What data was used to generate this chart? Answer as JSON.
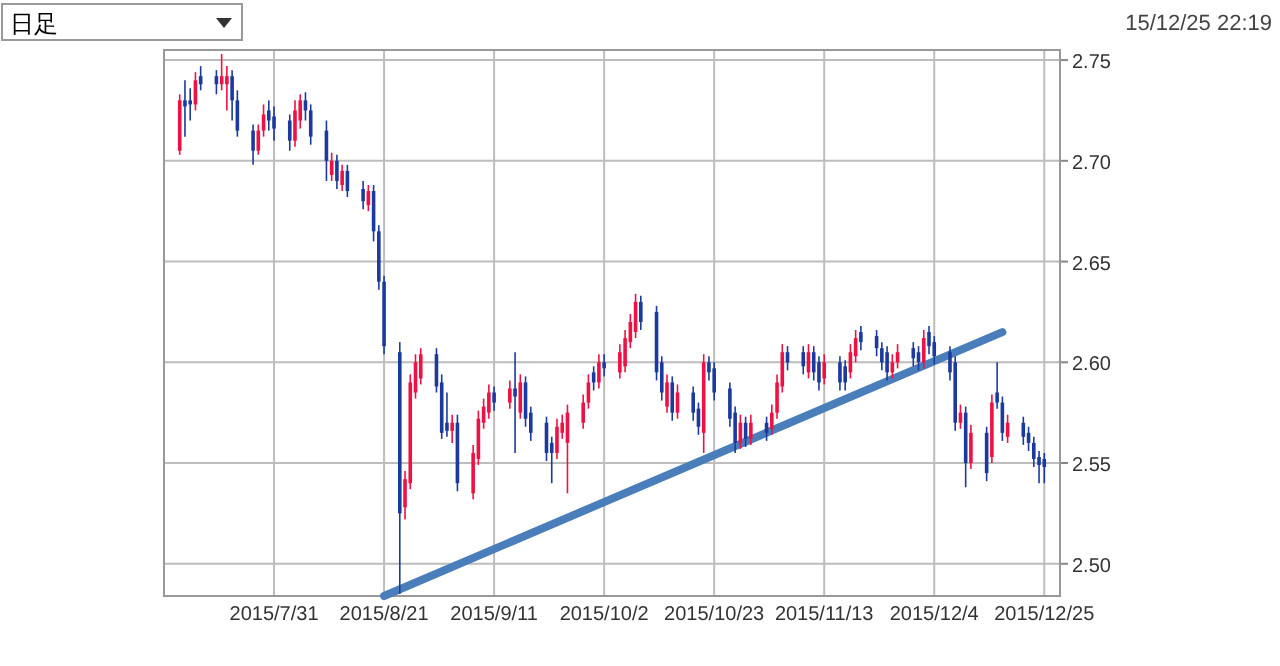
{
  "chart_data": {
    "type": "candlestick",
    "annotations": [
      "日足",
      "15/12/25 22:19"
    ],
    "x": [
      "2015-07-13",
      "2015-07-14",
      "2015-07-15",
      "2015-07-16",
      "2015-07-17",
      "2015-07-20",
      "2015-07-21",
      "2015-07-22",
      "2015-07-23",
      "2015-07-24",
      "2015-07-27",
      "2015-07-28",
      "2015-07-29",
      "2015-07-30",
      "2015-07-31",
      "2015-08-03",
      "2015-08-04",
      "2015-08-05",
      "2015-08-06",
      "2015-08-07",
      "2015-08-10",
      "2015-08-11",
      "2015-08-12",
      "2015-08-13",
      "2015-08-14",
      "2015-08-17",
      "2015-08-18",
      "2015-08-19",
      "2015-08-20",
      "2015-08-21",
      "2015-08-24",
      "2015-08-25",
      "2015-08-26",
      "2015-08-27",
      "2015-08-28",
      "2015-08-31",
      "2015-09-01",
      "2015-09-02",
      "2015-09-03",
      "2015-09-04",
      "2015-09-07",
      "2015-09-08",
      "2015-09-09",
      "2015-09-10",
      "2015-09-11",
      "2015-09-14",
      "2015-09-15",
      "2015-09-16",
      "2015-09-17",
      "2015-09-18",
      "2015-09-21",
      "2015-09-22",
      "2015-09-23",
      "2015-09-24",
      "2015-09-25",
      "2015-09-28",
      "2015-09-29",
      "2015-09-30",
      "2015-10-01",
      "2015-10-02",
      "2015-10-05",
      "2015-10-06",
      "2015-10-07",
      "2015-10-08",
      "2015-10-09",
      "2015-10-12",
      "2015-10-13",
      "2015-10-14",
      "2015-10-15",
      "2015-10-16",
      "2015-10-19",
      "2015-10-20",
      "2015-10-21",
      "2015-10-22",
      "2015-10-23",
      "2015-10-26",
      "2015-10-27",
      "2015-10-28",
      "2015-10-29",
      "2015-10-30",
      "2015-11-02",
      "2015-11-03",
      "2015-11-04",
      "2015-11-05",
      "2015-11-06",
      "2015-11-09",
      "2015-11-10",
      "2015-11-11",
      "2015-11-12",
      "2015-11-13",
      "2015-11-16",
      "2015-11-17",
      "2015-11-18",
      "2015-11-19",
      "2015-11-20",
      "2015-11-23",
      "2015-11-24",
      "2015-11-25",
      "2015-11-26",
      "2015-11-27",
      "2015-11-30",
      "2015-12-01",
      "2015-12-02",
      "2015-12-03",
      "2015-12-04",
      "2015-12-07",
      "2015-12-08",
      "2015-12-09",
      "2015-12-10",
      "2015-12-11",
      "2015-12-14",
      "2015-12-15",
      "2015-12-16",
      "2015-12-17",
      "2015-12-18",
      "2015-12-21",
      "2015-12-22",
      "2015-12-23",
      "2015-12-24",
      "2015-12-25"
    ],
    "ohlc": [
      [
        2.705,
        2.733,
        2.703,
        2.73
      ],
      [
        2.73,
        2.74,
        2.712,
        2.727
      ],
      [
        2.73,
        2.736,
        2.72,
        2.728
      ],
      [
        2.728,
        2.744,
        2.725,
        2.74
      ],
      [
        2.742,
        2.747,
        2.735,
        2.738
      ],
      [
        2.742,
        2.745,
        2.733,
        2.738
      ],
      [
        2.738,
        2.753,
        2.735,
        2.742
      ],
      [
        2.738,
        2.747,
        2.725,
        2.742
      ],
      [
        2.742,
        2.745,
        2.72,
        2.73
      ],
      [
        2.73,
        2.735,
        2.712,
        2.715
      ],
      [
        2.715,
        2.718,
        2.698,
        2.705
      ],
      [
        2.705,
        2.718,
        2.703,
        2.715
      ],
      [
        2.715,
        2.728,
        2.712,
        2.723
      ],
      [
        2.725,
        2.73,
        2.715,
        2.72
      ],
      [
        2.722,
        2.727,
        2.71,
        2.716
      ],
      [
        2.72,
        2.723,
        2.705,
        2.71
      ],
      [
        2.71,
        2.73,
        2.707,
        2.725
      ],
      [
        2.72,
        2.733,
        2.716,
        2.73
      ],
      [
        2.73,
        2.734,
        2.72,
        2.725
      ],
      [
        2.725,
        2.728,
        2.708,
        2.712
      ],
      [
        2.715,
        2.72,
        2.69,
        2.7
      ],
      [
        2.693,
        2.704,
        2.69,
        2.7
      ],
      [
        2.7,
        2.703,
        2.686,
        2.69
      ],
      [
        2.688,
        2.698,
        2.685,
        2.695
      ],
      [
        2.695,
        2.698,
        2.682,
        2.685
      ],
      [
        2.686,
        2.69,
        2.676,
        2.68
      ],
      [
        2.678,
        2.688,
        2.675,
        2.685
      ],
      [
        2.685,
        2.688,
        2.66,
        2.665
      ],
      [
        2.665,
        2.668,
        2.636,
        2.64
      ],
      [
        2.64,
        2.643,
        2.604,
        2.608
      ],
      [
        2.605,
        2.61,
        2.485,
        2.525
      ],
      [
        2.528,
        2.546,
        2.522,
        2.542
      ],
      [
        2.54,
        2.594,
        2.537,
        2.59
      ],
      [
        2.585,
        2.604,
        2.582,
        2.6
      ],
      [
        2.592,
        2.607,
        2.589,
        2.604
      ],
      [
        2.604,
        2.607,
        2.585,
        2.588
      ],
      [
        2.59,
        2.594,
        2.562,
        2.565
      ],
      [
        2.57,
        2.585,
        2.563,
        2.566
      ],
      [
        2.566,
        2.574,
        2.56,
        2.57
      ],
      [
        2.57,
        2.574,
        2.536,
        2.54
      ],
      [
        2.535,
        2.559,
        2.532,
        2.555
      ],
      [
        2.552,
        2.576,
        2.549,
        2.572
      ],
      [
        2.57,
        2.582,
        2.567,
        2.578
      ],
      [
        2.575,
        2.589,
        2.572,
        2.585
      ],
      [
        2.585,
        2.588,
        2.576,
        2.58
      ],
      [
        2.58,
        2.591,
        2.577,
        2.587
      ],
      [
        2.587,
        2.605,
        2.555,
        2.583
      ],
      [
        2.575,
        2.594,
        2.572,
        2.59
      ],
      [
        2.59,
        2.593,
        2.568,
        2.572
      ],
      [
        2.575,
        2.578,
        2.561,
        2.565
      ],
      [
        2.57,
        2.573,
        2.551,
        2.555
      ],
      [
        2.56,
        2.563,
        2.54,
        2.555
      ],
      [
        2.555,
        2.572,
        2.552,
        2.568
      ],
      [
        2.565,
        2.574,
        2.562,
        2.57
      ],
      [
        2.56,
        2.579,
        2.535,
        2.575
      ],
      [
        2.57,
        2.584,
        2.567,
        2.58
      ],
      [
        2.58,
        2.594,
        2.577,
        2.59
      ],
      [
        2.595,
        2.598,
        2.586,
        2.59
      ],
      [
        2.59,
        2.604,
        2.587,
        2.6
      ],
      [
        2.6,
        2.604,
        2.593,
        2.597
      ],
      [
        2.595,
        2.609,
        2.592,
        2.605
      ],
      [
        2.598,
        2.616,
        2.595,
        2.612
      ],
      [
        2.61,
        2.624,
        2.607,
        2.62
      ],
      [
        2.615,
        2.634,
        2.612,
        2.63
      ],
      [
        2.63,
        2.633,
        2.616,
        2.62
      ],
      [
        2.625,
        2.628,
        2.591,
        2.595
      ],
      [
        2.6,
        2.603,
        2.581,
        2.585
      ],
      [
        2.578,
        2.594,
        2.575,
        2.59
      ],
      [
        2.59,
        2.593,
        2.571,
        2.575
      ],
      [
        2.575,
        2.589,
        2.572,
        2.585
      ],
      [
        2.585,
        2.588,
        2.571,
        2.575
      ],
      [
        2.577,
        2.58,
        2.564,
        2.568
      ],
      [
        2.565,
        2.604,
        2.555,
        2.6
      ],
      [
        2.6,
        2.603,
        2.591,
        2.595
      ],
      [
        2.597,
        2.6,
        2.581,
        2.585
      ],
      [
        2.587,
        2.59,
        2.568,
        2.572
      ],
      [
        2.575,
        2.578,
        2.555,
        2.56
      ],
      [
        2.56,
        2.574,
        2.557,
        2.57
      ],
      [
        2.57,
        2.573,
        2.558,
        2.562
      ],
      [
        2.562,
        2.574,
        2.559,
        2.57
      ],
      [
        2.57,
        2.573,
        2.561,
        2.565
      ],
      [
        2.567,
        2.579,
        2.564,
        2.575
      ],
      [
        2.575,
        2.594,
        2.572,
        2.59
      ],
      [
        2.588,
        2.609,
        2.585,
        2.605
      ],
      [
        2.605,
        2.608,
        2.596,
        2.6
      ],
      [
        2.605,
        2.608,
        2.594,
        2.598
      ],
      [
        2.595,
        2.609,
        2.592,
        2.605
      ],
      [
        2.605,
        2.608,
        2.591,
        2.595
      ],
      [
        2.6,
        2.603,
        2.586,
        2.59
      ],
      [
        2.592,
        2.604,
        2.589,
        2.6
      ],
      [
        2.6,
        2.603,
        2.586,
        2.59
      ],
      [
        2.598,
        2.601,
        2.586,
        2.59
      ],
      [
        2.595,
        2.609,
        2.592,
        2.605
      ],
      [
        2.603,
        2.616,
        2.6,
        2.612
      ],
      [
        2.615,
        2.618,
        2.606,
        2.61
      ],
      [
        2.613,
        2.616,
        2.603,
        2.607
      ],
      [
        2.607,
        2.61,
        2.596,
        2.6
      ],
      [
        2.605,
        2.608,
        2.591,
        2.595
      ],
      [
        2.595,
        2.604,
        2.592,
        2.6
      ],
      [
        2.6,
        2.609,
        2.597,
        2.605
      ],
      [
        2.607,
        2.61,
        2.598,
        2.602
      ],
      [
        2.605,
        2.608,
        2.596,
        2.6
      ],
      [
        2.6,
        2.616,
        2.597,
        2.612
      ],
      [
        2.615,
        2.618,
        2.604,
        2.608
      ],
      [
        2.61,
        2.613,
        2.599,
        2.603
      ],
      [
        2.605,
        2.608,
        2.591,
        2.595
      ],
      [
        2.6,
        2.603,
        2.566,
        2.57
      ],
      [
        2.57,
        2.579,
        2.567,
        2.575
      ],
      [
        2.575,
        2.578,
        2.538,
        2.55
      ],
      [
        2.55,
        2.569,
        2.547,
        2.565
      ],
      [
        2.565,
        2.568,
        2.541,
        2.545
      ],
      [
        2.553,
        2.584,
        2.55,
        2.58
      ],
      [
        2.585,
        2.6,
        2.577,
        2.58
      ],
      [
        2.58,
        2.583,
        2.561,
        2.565
      ],
      [
        2.563,
        2.574,
        2.56,
        2.57
      ],
      [
        2.57,
        2.573,
        2.559,
        2.563
      ],
      [
        2.565,
        2.568,
        2.556,
        2.56
      ],
      [
        2.56,
        2.563,
        2.548,
        2.552
      ],
      [
        2.553,
        2.556,
        2.54,
        2.549
      ],
      [
        2.552,
        2.555,
        2.54,
        2.548
      ]
    ],
    "colors": [
      "#ee1144",
      "#1c3a9e",
      "#1c3a9e",
      "#ee1144",
      "#1c3a9e",
      "#1c3a9e",
      "#ee1144",
      "#ee1144",
      "#1c3a9e",
      "#1c3a9e",
      "#1c3a9e",
      "#ee1144",
      "#ee1144",
      "#1c3a9e",
      "#1c3a9e",
      "#1c3a9e",
      "#ee1144",
      "#ee1144",
      "#1c3a9e",
      "#1c3a9e",
      "#1c3a9e",
      "#ee1144",
      "#1c3a9e",
      "#ee1144",
      "#1c3a9e",
      "#1c3a9e",
      "#ee1144",
      "#1c3a9e",
      "#1c3a9e",
      "#1c3a9e",
      "#1c3a9e",
      "#ee1144",
      "#ee1144",
      "#ee1144",
      "#ee1144",
      "#1c3a9e",
      "#1c3a9e",
      "#1c3a9e",
      "#ee1144",
      "#1c3a9e",
      "#ee1144",
      "#ee1144",
      "#ee1144",
      "#ee1144",
      "#1c3a9e",
      "#ee1144",
      "#1c3a9e",
      "#ee1144",
      "#1c3a9e",
      "#1c3a9e",
      "#1c3a9e",
      "#1c3a9e",
      "#ee1144",
      "#ee1144",
      "#ee1144",
      "#ee1144",
      "#ee1144",
      "#1c3a9e",
      "#ee1144",
      "#1c3a9e",
      "#ee1144",
      "#ee1144",
      "#ee1144",
      "#ee1144",
      "#1c3a9e",
      "#1c3a9e",
      "#1c3a9e",
      "#ee1144",
      "#1c3a9e",
      "#ee1144",
      "#1c3a9e",
      "#1c3a9e",
      "#ee1144",
      "#1c3a9e",
      "#1c3a9e",
      "#1c3a9e",
      "#1c3a9e",
      "#ee1144",
      "#1c3a9e",
      "#ee1144",
      "#1c3a9e",
      "#ee1144",
      "#ee1144",
      "#ee1144",
      "#1c3a9e",
      "#1c3a9e",
      "#ee1144",
      "#1c3a9e",
      "#1c3a9e",
      "#ee1144",
      "#1c3a9e",
      "#1c3a9e",
      "#ee1144",
      "#ee1144",
      "#1c3a9e",
      "#1c3a9e",
      "#1c3a9e",
      "#1c3a9e",
      "#ee1144",
      "#ee1144",
      "#1c3a9e",
      "#1c3a9e",
      "#ee1144",
      "#1c3a9e",
      "#1c3a9e",
      "#1c3a9e",
      "#1c3a9e",
      "#ee1144",
      "#1c3a9e",
      "#ee1144",
      "#1c3a9e",
      "#ee1144",
      "#1c3a9e",
      "#1c3a9e",
      "#ee1144",
      "#1c3a9e",
      "#1c3a9e",
      "#1c3a9e",
      "#1c3a9e",
      "#1c3a9e"
    ],
    "series": [
      {
        "type": "line",
        "x": [
          "2015-08-21",
          "2015-12-17"
        ],
        "values": [
          2.484,
          2.615
        ],
        "color": "#4a7ebb"
      }
    ],
    "xlim": [
      "2015-07-10",
      "2015-12-28"
    ],
    "xticks": [
      {
        "value": "2015-07-31",
        "label": "2015/7/31"
      },
      {
        "value": "2015-08-21",
        "label": "2015/8/21"
      },
      {
        "value": "2015-09-11",
        "label": "2015/9/11"
      },
      {
        "value": "2015-10-02",
        "label": "2015/10/2"
      },
      {
        "value": "2015-10-23",
        "label": "2015/10/23"
      },
      {
        "value": "2015-11-13",
        "label": "2015/11/13"
      },
      {
        "value": "2015-12-04",
        "label": "2015/12/4"
      },
      {
        "value": "2015-12-25",
        "label": "2015/12/25"
      }
    ],
    "ylim": [
      2.484,
      2.755
    ],
    "yticks": [
      {
        "value": 2.5,
        "label": "2.50"
      },
      {
        "value": 2.55,
        "label": "2.55"
      },
      {
        "value": 2.6,
        "label": "2.60"
      },
      {
        "value": 2.65,
        "label": "2.65"
      },
      {
        "value": 2.7,
        "label": "2.70"
      },
      {
        "value": 2.75,
        "label": "2.75"
      }
    ],
    "grid": true
  }
}
